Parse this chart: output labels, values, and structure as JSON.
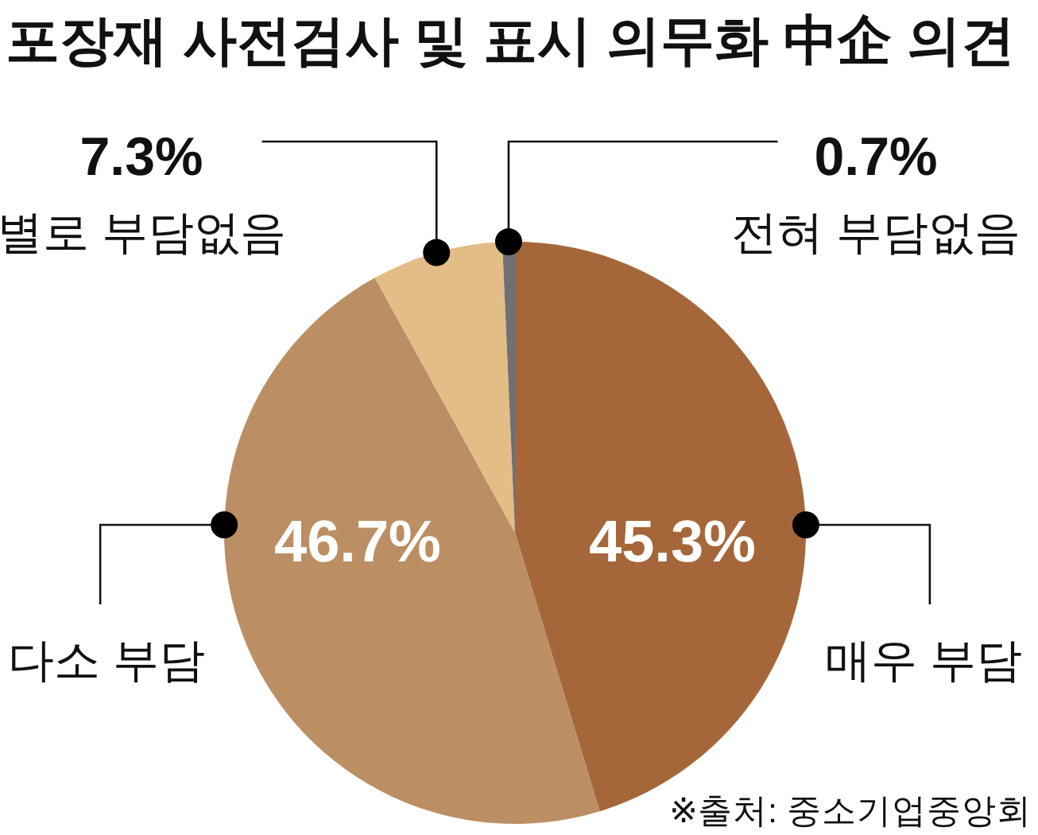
{
  "chart_data": {
    "type": "pie",
    "title": "포장재 사전검사 및 표시 의무화 中企 의견",
    "categories": [
      "매우 부담",
      "다소 부담",
      "별로 부담없음",
      "전혀 부담없음"
    ],
    "values": [
      45.3,
      46.7,
      7.3,
      0.7
    ],
    "colors": [
      "#a5673a",
      "#bb8f63",
      "#e2bd85",
      "#6f7073"
    ],
    "value_labels": [
      "45.3%",
      "46.7%",
      "7.3%",
      "0.7%"
    ],
    "annotations": [
      "※출처: 중소기업중앙회"
    ]
  }
}
